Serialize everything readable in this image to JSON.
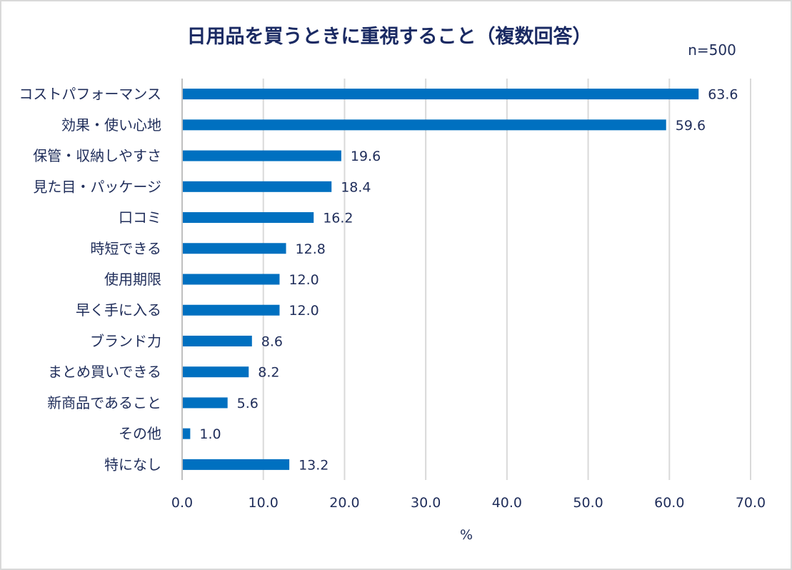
{
  "chart_data": {
    "type": "bar",
    "orientation": "horizontal",
    "title": "日用品を買うときに重視すること（複数回答）",
    "annotation": "n=500",
    "xlabel": "%",
    "ylabel": "",
    "xlim": [
      0,
      70
    ],
    "xticks": [
      "0.0",
      "10.0",
      "20.0",
      "30.0",
      "40.0",
      "50.0",
      "60.0",
      "70.0"
    ],
    "grid": "vertical",
    "legend": "none",
    "bar_color": "#0070C0",
    "categories": [
      "コストパフォーマンス",
      "効果・使い心地",
      "保管・収納しやすさ",
      "見た目・パッケージ",
      "口コミ",
      "時短できる",
      "使用期限",
      "早く手に入る",
      "ブランド力",
      "まとめ買いできる",
      "新商品であること",
      "その他",
      "特になし"
    ],
    "values": [
      63.6,
      59.6,
      19.6,
      18.4,
      16.2,
      12.8,
      12.0,
      12.0,
      8.6,
      8.2,
      5.6,
      1.0,
      13.2
    ],
    "value_labels": [
      "63.6",
      "59.6",
      "19.6",
      "18.4",
      "16.2",
      "12.8",
      "12.0",
      "12.0",
      "8.6",
      "8.2",
      "5.6",
      "1.0",
      "13.2"
    ]
  }
}
